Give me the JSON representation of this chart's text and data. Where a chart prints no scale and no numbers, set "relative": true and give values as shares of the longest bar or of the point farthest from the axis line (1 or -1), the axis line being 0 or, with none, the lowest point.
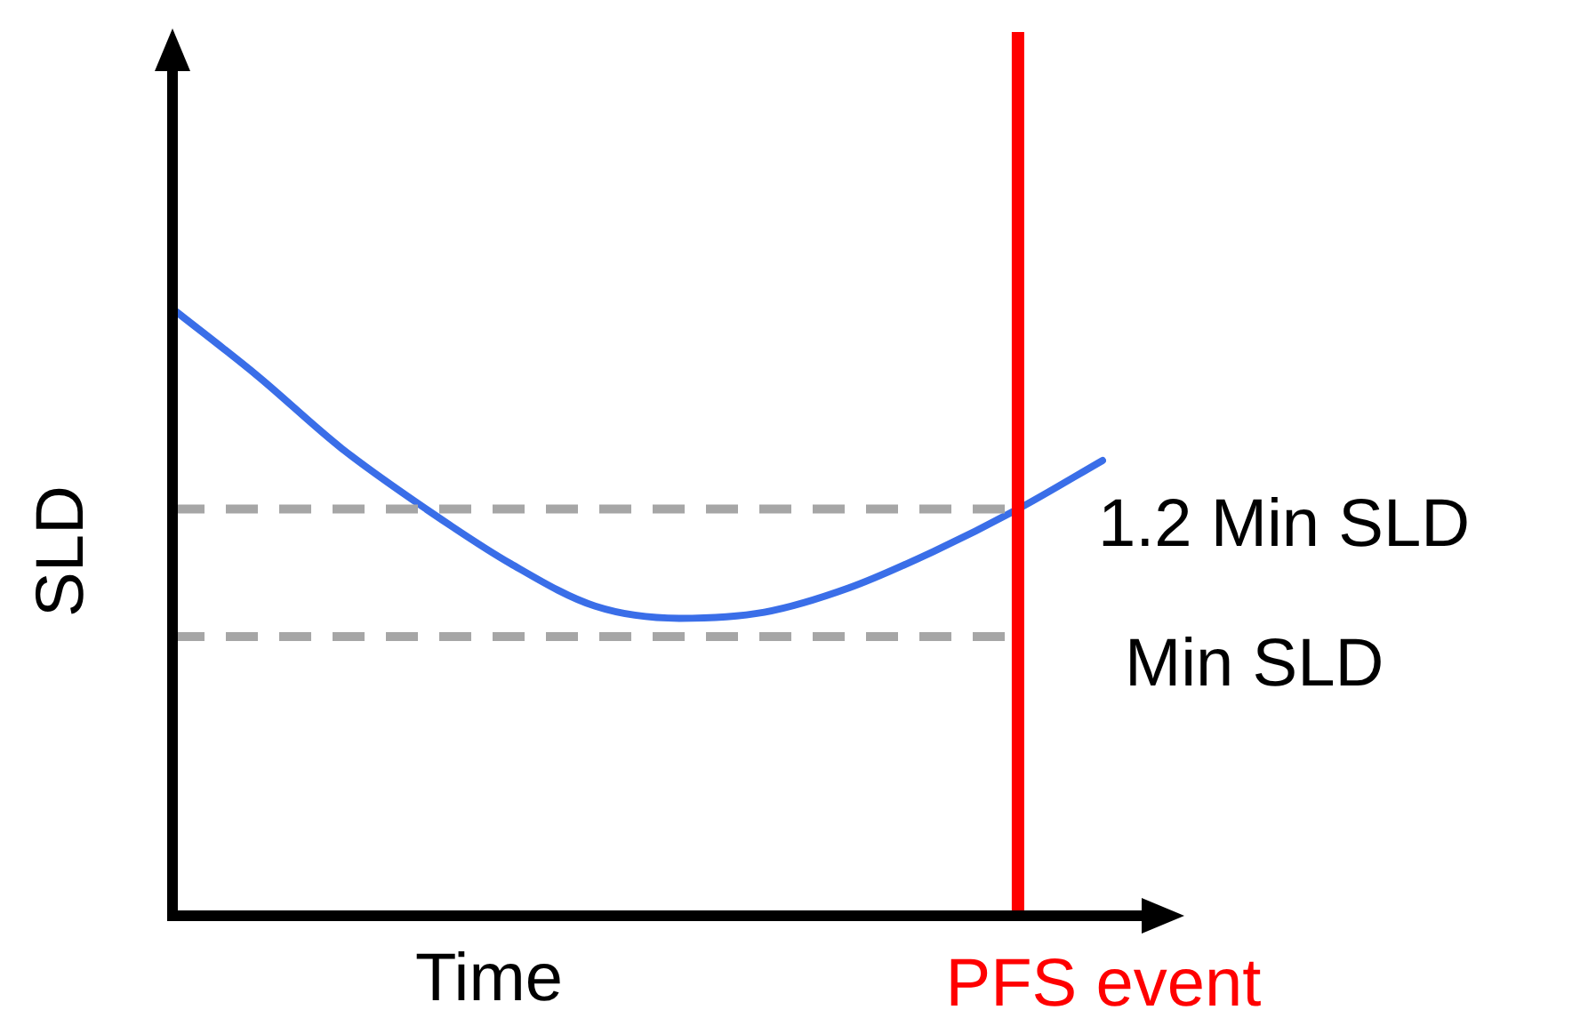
{
  "chart_data": {
    "type": "line",
    "relative": true,
    "xlabel": "Time",
    "ylabel": "SLD",
    "categories": [
      null,
      null,
      null,
      null,
      null,
      null,
      null,
      null,
      null,
      null,
      null,
      null
    ],
    "series": [
      {
        "color": "#3a6ee8",
        "values": [
          1,
          0.89,
          0.77,
          0.67,
          0.58,
          0.51,
          0.49,
          0.5,
          0.54,
          0.6,
          0.67,
          0.75
        ]
      }
    ],
    "ref_lines": [
      {
        "axis": "y",
        "value": 0.67,
        "label": "1.2 Min SLD",
        "color": "#a6a6a6",
        "line_style": "dashed"
      },
      {
        "axis": "y",
        "value": 0.46,
        "label": "Min SLD",
        "color": "#a6a6a6",
        "line_style": "dashed"
      }
    ],
    "annotations": [
      "PFS event"
    ],
    "legend": false,
    "marker": "none",
    "line_style": "solid"
  }
}
